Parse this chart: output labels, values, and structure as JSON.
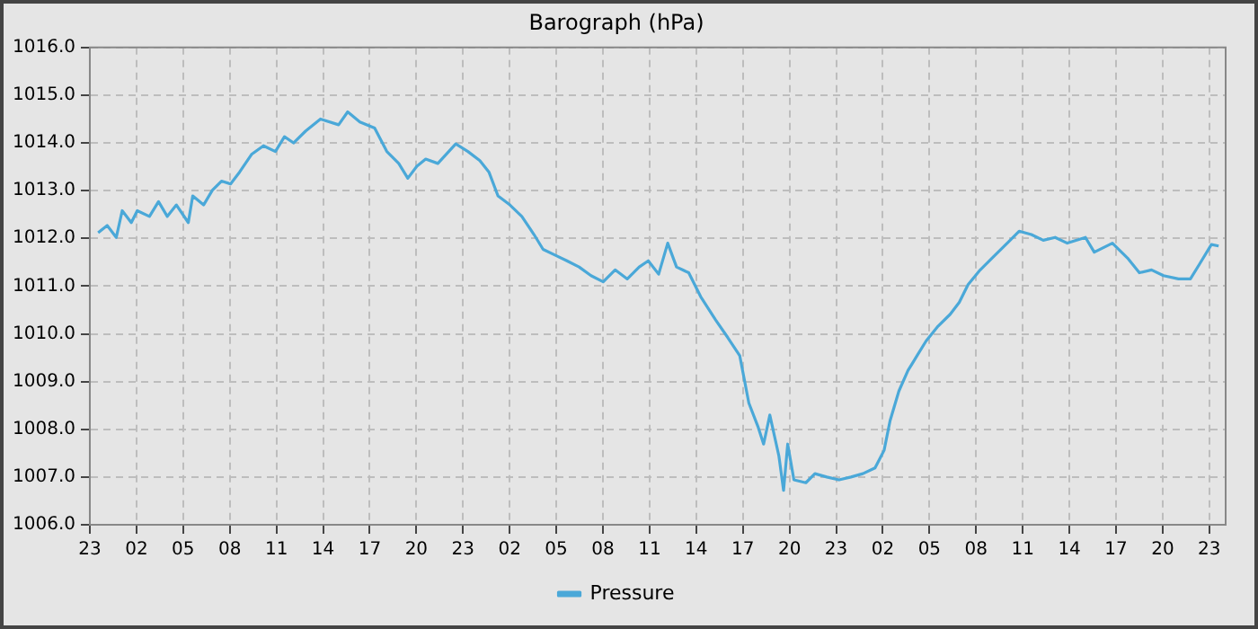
{
  "chart_data": {
    "type": "line",
    "title": "Barograph (hPa)",
    "legend": "bottom",
    "grid": true,
    "marker": "none",
    "line_style": "solid",
    "xlim": [
      "--01-01T23:00",
      "--01-05T00:03"
    ],
    "ylim": [
      1006,
      1016
    ],
    "xticks": [
      {
        "value": "--01-01T23:00",
        "label": "23"
      },
      {
        "value": "--01-02T02:00",
        "label": "02"
      },
      {
        "value": "--01-02T05:00",
        "label": "05"
      },
      {
        "value": "--01-02T08:00",
        "label": "08"
      },
      {
        "value": "--01-02T11:00",
        "label": "11"
      },
      {
        "value": "--01-02T14:00",
        "label": "14"
      },
      {
        "value": "--01-02T17:00",
        "label": "17"
      },
      {
        "value": "--01-02T20:00",
        "label": "20"
      },
      {
        "value": "--01-02T23:00",
        "label": "23"
      },
      {
        "value": "--01-03T02:00",
        "label": "02"
      },
      {
        "value": "--01-03T05:00",
        "label": "05"
      },
      {
        "value": "--01-03T08:00",
        "label": "08"
      },
      {
        "value": "--01-03T11:00",
        "label": "11"
      },
      {
        "value": "--01-03T14:00",
        "label": "14"
      },
      {
        "value": "--01-03T17:00",
        "label": "17"
      },
      {
        "value": "--01-03T20:00",
        "label": "20"
      },
      {
        "value": "--01-03T23:00",
        "label": "23"
      },
      {
        "value": "--01-04T02:00",
        "label": "02"
      },
      {
        "value": "--01-04T05:00",
        "label": "05"
      },
      {
        "value": "--01-04T08:00",
        "label": "08"
      },
      {
        "value": "--01-04T11:00",
        "label": "11"
      },
      {
        "value": "--01-04T14:00",
        "label": "14"
      },
      {
        "value": "--01-04T17:00",
        "label": "17"
      },
      {
        "value": "--01-04T20:00",
        "label": "20"
      },
      {
        "value": "--01-04T23:00",
        "label": "23"
      }
    ],
    "yticks": [
      {
        "value": 1006,
        "label": "1006.0"
      },
      {
        "value": 1007,
        "label": "1007.0"
      },
      {
        "value": 1008,
        "label": "1008.0"
      },
      {
        "value": 1009,
        "label": "1009.0"
      },
      {
        "value": 1010,
        "label": "1010.0"
      },
      {
        "value": 1011,
        "label": "1011.0"
      },
      {
        "value": 1012,
        "label": "1012.0"
      },
      {
        "value": 1013,
        "label": "1013.0"
      },
      {
        "value": 1014,
        "label": "1014.0"
      },
      {
        "value": 1015,
        "label": "1015.0"
      },
      {
        "value": 1016,
        "label": "1016.0"
      }
    ],
    "x": [
      "--01-01T23:32",
      "--01-02T00:07",
      "--01-02T00:42",
      "--01-02T01:05",
      "--01-02T01:40",
      "--01-02T02:03",
      "--01-02T02:50",
      "--01-02T03:25",
      "--01-02T03:59",
      "--01-02T04:34",
      "--01-02T05:20",
      "--01-02T05:37",
      "--01-02T06:19",
      "--01-02T06:53",
      "--01-02T07:28",
      "--01-02T08:03",
      "--01-02T08:38",
      "--01-02T09:24",
      "--01-02T10:10",
      "--01-02T10:56",
      "--01-02T11:31",
      "--01-02T12:06",
      "--01-02T12:53",
      "--01-02T13:50",
      "--01-02T15:00",
      "--01-02T15:35",
      "--01-02T16:22",
      "--01-02T17:19",
      "--01-02T18:06",
      "--01-02T18:52",
      "--01-02T19:27",
      "--01-02T20:02",
      "--01-02T20:36",
      "--01-02T21:23",
      "--01-02T22:32",
      "--01-02T23:19",
      "--01-03T00:05",
      "--01-03T00:40",
      "--01-03T01:15",
      "--01-03T02:01",
      "--01-03T02:47",
      "--01-03T03:34",
      "--01-03T04:09",
      "--01-03T04:55",
      "--01-03T05:41",
      "--01-03T06:28",
      "--01-03T07:14",
      "--01-03T08:01",
      "--01-03T08:47",
      "--01-03T09:34",
      "--01-03T10:20",
      "--01-03T10:55",
      "--01-03T11:35",
      "--01-03T12:10",
      "--01-03T12:44",
      "--01-03T13:31",
      "--01-03T14:17",
      "--01-03T15:15",
      "--01-03T16:02",
      "--01-03T16:48",
      "--01-03T17:23",
      "--01-03T17:58",
      "--01-03T18:20",
      "--01-03T18:44",
      "--01-03T19:19",
      "--01-03T19:37",
      "--01-03T19:53",
      "--01-03T20:17",
      "--01-03T21:03",
      "--01-03T21:38",
      "--01-03T22:24",
      "--01-03T23:11",
      "--01-03T23:57",
      "--01-04T00:43",
      "--01-04T01:30",
      "--01-04T02:05",
      "--01-04T02:28",
      "--01-04T03:02",
      "--01-04T03:37",
      "--01-04T04:12",
      "--01-04T04:47",
      "--01-04T05:33",
      "--01-04T06:20",
      "--01-04T06:55",
      "--01-04T07:29",
      "--01-04T08:16",
      "--01-04T09:02",
      "--01-04T10:00",
      "--01-04T10:46",
      "--01-04T11:33",
      "--01-04T12:19",
      "--01-04T13:05",
      "--01-04T13:52",
      "--01-04T15:02",
      "--01-04T15:36",
      "--01-04T16:46",
      "--01-04T17:44",
      "--01-04T18:30",
      "--01-04T19:17",
      "--01-04T20:03",
      "--01-04T21:01",
      "--01-04T21:47",
      "--01-04T22:22",
      "--01-04T23:08",
      "--01-04T23:36"
    ],
    "series": [
      {
        "name": "Pressure",
        "color": "#4aa8d8",
        "values": [
          1012.12,
          1012.27,
          1012.02,
          1012.58,
          1012.33,
          1012.58,
          1012.46,
          1012.77,
          1012.46,
          1012.7,
          1012.33,
          1012.89,
          1012.7,
          1013.01,
          1013.2,
          1013.14,
          1013.39,
          1013.76,
          1013.94,
          1013.82,
          1014.13,
          1014.0,
          1014.25,
          1014.5,
          1014.38,
          1014.65,
          1014.44,
          1014.31,
          1013.82,
          1013.57,
          1013.26,
          1013.51,
          1013.66,
          1013.57,
          1013.98,
          1013.82,
          1013.63,
          1013.39,
          1012.89,
          1012.7,
          1012.46,
          1012.08,
          1011.77,
          1011.65,
          1011.53,
          1011.4,
          1011.22,
          1011.09,
          1011.34,
          1011.15,
          1011.4,
          1011.53,
          1011.25,
          1011.9,
          1011.4,
          1011.28,
          1010.78,
          1010.29,
          1009.92,
          1009.54,
          1008.55,
          1008.06,
          1007.69,
          1008.3,
          1007.44,
          1006.72,
          1007.69,
          1006.94,
          1006.88,
          1007.07,
          1007.0,
          1006.94,
          1007.0,
          1007.07,
          1007.19,
          1007.56,
          1008.18,
          1008.8,
          1009.23,
          1009.54,
          1009.85,
          1010.16,
          1010.41,
          1010.66,
          1011.03,
          1011.34,
          1011.59,
          1011.9,
          1012.15,
          1012.08,
          1011.96,
          1012.02,
          1011.9,
          1012.02,
          1011.71,
          1011.9,
          1011.59,
          1011.28,
          1011.34,
          1011.22,
          1011.15,
          1011.15,
          1011.46,
          1011.87,
          1011.84
        ]
      }
    ]
  }
}
